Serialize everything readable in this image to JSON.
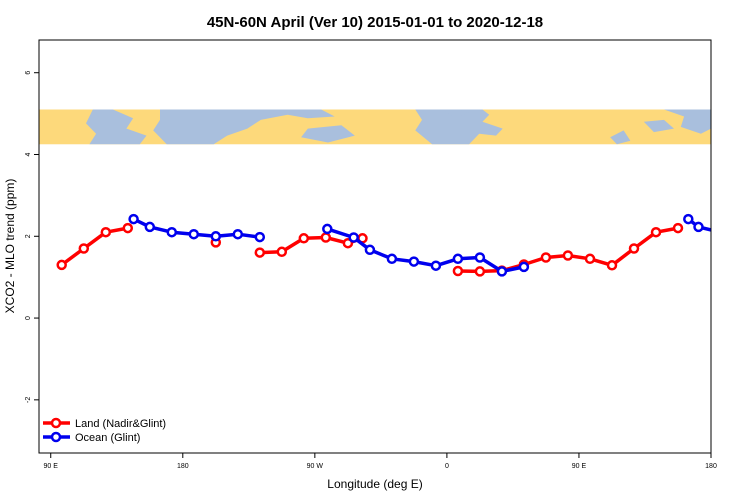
{
  "chart_data": {
    "type": "line",
    "title": "45N-60N April (Ver 10)   2015-01-01 to 2020-12-18",
    "xlabel": "Longitude (deg E)",
    "ylabel": "XCO2 - MLO trend (ppm)",
    "x_axis": {
      "description": "longitude plotted from 90 E eastward through 180, 90 W, 0, 90 E to 180 (deg E, continuous scale)",
      "range": [
        82,
        540
      ],
      "ticks": [
        {
          "value": 90,
          "label": "90 E"
        },
        {
          "value": 180,
          "label": "180"
        },
        {
          "value": 270,
          "label": "90 W"
        },
        {
          "value": 360,
          "label": "0"
        },
        {
          "value": 450,
          "label": "90 E"
        },
        {
          "value": 540,
          "label": "180"
        }
      ]
    },
    "y_axis": {
      "range": [
        -3.3,
        6.8
      ],
      "ticks": [
        {
          "value": -2,
          "label": "-2"
        },
        {
          "value": 0,
          "label": "0"
        },
        {
          "value": 2,
          "label": "2"
        },
        {
          "value": 4,
          "label": "4"
        },
        {
          "value": 6,
          "label": "6"
        }
      ]
    },
    "map_strip": {
      "y_range": [
        4.25,
        5.1
      ],
      "land_color": "#fdd97b",
      "ocean_color": "#a9bfdd"
    },
    "legend": {
      "position": "bottom-left"
    },
    "series": [
      {
        "name": "Land (Nadir&Glint)",
        "color": "#ff0000",
        "segments": [
          [
            [
              97.5,
              1.3
            ],
            [
              112.5,
              1.7
            ],
            [
              127.5,
              2.1
            ],
            [
              142.5,
              2.2
            ]
          ],
          [
            [
              202.5,
              1.85
            ]
          ],
          [
            [
              232.5,
              1.6
            ],
            [
              247.5,
              1.62
            ],
            [
              262.5,
              1.95
            ],
            [
              277.5,
              1.97
            ],
            [
              292.5,
              1.83
            ],
            [
              302.5,
              1.95
            ]
          ],
          [
            [
              367.5,
              1.15
            ],
            [
              382.5,
              1.14
            ],
            [
              397.5,
              1.16
            ],
            [
              412.5,
              1.31
            ],
            [
              427.5,
              1.48
            ],
            [
              442.5,
              1.53
            ],
            [
              457.5,
              1.45
            ],
            [
              472.5,
              1.29
            ],
            [
              487.5,
              1.7
            ],
            [
              502.5,
              2.1
            ],
            [
              517.5,
              2.2
            ]
          ]
        ]
      },
      {
        "name": "Ocean (Glint)",
        "color": "#0000ee",
        "segments": [
          [
            [
              146.5,
              2.42
            ],
            [
              157.5,
              2.23
            ],
            [
              172.5,
              2.1
            ],
            [
              187.5,
              2.05
            ],
            [
              202.5,
              2.0
            ],
            [
              217.5,
              2.05
            ],
            [
              232.5,
              1.98
            ]
          ],
          [
            [
              278.5,
              2.18
            ],
            [
              296.5,
              1.97
            ],
            [
              307.5,
              1.67
            ],
            [
              322.5,
              1.45
            ],
            [
              337.5,
              1.38
            ],
            [
              352.5,
              1.28
            ],
            [
              367.5,
              1.45
            ],
            [
              382.5,
              1.48
            ],
            [
              397.5,
              1.14
            ],
            [
              412.5,
              1.25
            ]
          ],
          [
            [
              524.5,
              2.42
            ],
            [
              531.5,
              2.23
            ],
            [
              546.5,
              2.1
            ]
          ]
        ]
      }
    ]
  }
}
